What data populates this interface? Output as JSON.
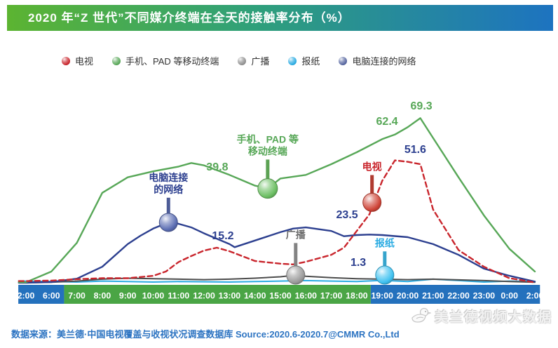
{
  "header": {
    "title": "2020 年“Z 世代”不同媒介终端在全天的接触率分布（%）"
  },
  "legend": {
    "items": [
      {
        "id": "tv",
        "label": "电视",
        "color": "#c9252c"
      },
      {
        "id": "mobile",
        "label": "手机、PAD 等移动终端",
        "color": "#57a757"
      },
      {
        "id": "radio",
        "label": "广播",
        "color": "#8f8f8f"
      },
      {
        "id": "newspaper",
        "label": "报纸",
        "color": "#29abe2"
      },
      {
        "id": "pc-network",
        "label": "电脑连接的网络",
        "color": "#55659f"
      }
    ]
  },
  "chart_data": {
    "type": "line",
    "title": "2020 年“Z 世代”不同媒介终端在全天的接触率分布（%）",
    "x_ticks": [
      "2:00",
      "6:00",
      "7:00",
      "8:00",
      "9:00",
      "10:00",
      "11:00",
      "12:00",
      "13:00",
      "14:00",
      "15:00",
      "16:00",
      "17:00",
      "18:00",
      "19:00",
      "20:00",
      "21:00",
      "22:00",
      "23:00",
      "0:00",
      "2:00"
    ],
    "ylim": [
      0,
      78
    ],
    "grid": false,
    "legend_position": "top",
    "axis_segments": [
      {
        "from": -0.3,
        "to": 1.5,
        "color": "#2471bd"
      },
      {
        "from": 1.5,
        "to": 13.55,
        "color": "#4aa545"
      },
      {
        "from": 13.55,
        "to": 20.2,
        "color": "#2471bd"
      }
    ],
    "series": [
      {
        "id": "newspaper",
        "name": "报纸",
        "color": "#29abe2",
        "dash": false,
        "width": 2,
        "points": [
          [
            0,
            1
          ],
          [
            1,
            0.8
          ],
          [
            2,
            0.6
          ],
          [
            3,
            1
          ],
          [
            4,
            0.8
          ],
          [
            5,
            0.6
          ],
          [
            6,
            0.8
          ],
          [
            7,
            0.7
          ],
          [
            8,
            0.6
          ],
          [
            9,
            0.8
          ],
          [
            10,
            1
          ],
          [
            11,
            1.2
          ],
          [
            12,
            1
          ],
          [
            13,
            0.8
          ],
          [
            14,
            1.3
          ],
          [
            15,
            0.8
          ],
          [
            16,
            1.8
          ],
          [
            17,
            1.2
          ],
          [
            18,
            0.6
          ],
          [
            19,
            1
          ],
          [
            20,
            0.8
          ]
        ]
      },
      {
        "id": "radio",
        "name": "广播",
        "color": "#4c4c4c",
        "dash": false,
        "width": 2,
        "points": [
          [
            0,
            0.3
          ],
          [
            1,
            0.5
          ],
          [
            2,
            1
          ],
          [
            3,
            1.8
          ],
          [
            4,
            2.2
          ],
          [
            5,
            2
          ],
          [
            6,
            1.8
          ],
          [
            7,
            1.6
          ],
          [
            8,
            1.8
          ],
          [
            9,
            2.2
          ],
          [
            10,
            2.8
          ],
          [
            10.6,
            3.5
          ],
          [
            11,
            3
          ],
          [
            12,
            2.4
          ],
          [
            13,
            2
          ],
          [
            14,
            1.8
          ],
          [
            15,
            1.6
          ],
          [
            16,
            1.8
          ],
          [
            17,
            1.5
          ],
          [
            18,
            1.2
          ],
          [
            19,
            0.8
          ],
          [
            20,
            0.5
          ]
        ]
      },
      {
        "id": "pc-network",
        "name": "电脑连接的网络",
        "color": "#2c3f8f",
        "dash": false,
        "width": 2.4,
        "points": [
          [
            0,
            0.3
          ],
          [
            1,
            0.6
          ],
          [
            2,
            2
          ],
          [
            3,
            7
          ],
          [
            4,
            16.5
          ],
          [
            4.5,
            20
          ],
          [
            5,
            23
          ],
          [
            5.6,
            25.6
          ],
          [
            6,
            25
          ],
          [
            6.5,
            23.5
          ],
          [
            7,
            21
          ],
          [
            8,
            16.5
          ],
          [
            8.2,
            15.2
          ],
          [
            9,
            18
          ],
          [
            10,
            21.5
          ],
          [
            10.5,
            23
          ],
          [
            11,
            23.5
          ],
          [
            12,
            22
          ],
          [
            12.5,
            19.8
          ],
          [
            13,
            20.3
          ],
          [
            13.5,
            20.5
          ],
          [
            14,
            20.3
          ],
          [
            15,
            19.4
          ],
          [
            16,
            16.5
          ],
          [
            17,
            12
          ],
          [
            18,
            6.2
          ],
          [
            19,
            3.2
          ],
          [
            20,
            0.8
          ]
        ]
      },
      {
        "id": "mobile",
        "name": "手机、PAD 等移动终端",
        "color": "#57a757",
        "dash": false,
        "width": 2.4,
        "points": [
          [
            0,
            0.5
          ],
          [
            1,
            5
          ],
          [
            2,
            17
          ],
          [
            3,
            38
          ],
          [
            4,
            44.5
          ],
          [
            5,
            47
          ],
          [
            6,
            49
          ],
          [
            6.5,
            50.5
          ],
          [
            7,
            49.5
          ],
          [
            8,
            45.5
          ],
          [
            9,
            41
          ],
          [
            9.5,
            39.8
          ],
          [
            10,
            44
          ],
          [
            11,
            45.5
          ],
          [
            12,
            50
          ],
          [
            13,
            55
          ],
          [
            14,
            60.5
          ],
          [
            14.5,
            62.4
          ],
          [
            15,
            65.5
          ],
          [
            15.5,
            69.3
          ],
          [
            16,
            61
          ],
          [
            17,
            44.5
          ],
          [
            18,
            28.5
          ],
          [
            19,
            14.5
          ],
          [
            20,
            5
          ]
        ]
      },
      {
        "id": "tv",
        "name": "电视",
        "color": "#c9252c",
        "dash": true,
        "width": 2.4,
        "points": [
          [
            0,
            1
          ],
          [
            1,
            1.2
          ],
          [
            2,
            1.8
          ],
          [
            3,
            2.2
          ],
          [
            4,
            2.2
          ],
          [
            5,
            3.2
          ],
          [
            5.5,
            5
          ],
          [
            6,
            9
          ],
          [
            6.5,
            11.5
          ],
          [
            7,
            13.8
          ],
          [
            7.5,
            15
          ],
          [
            8,
            13.5
          ],
          [
            9,
            9.4
          ],
          [
            10,
            8.3
          ],
          [
            10.5,
            8
          ],
          [
            11,
            9.1
          ],
          [
            12,
            12
          ],
          [
            12.5,
            15
          ],
          [
            13,
            22
          ],
          [
            13.5,
            29
          ],
          [
            14,
            43
          ],
          [
            14.5,
            51.6
          ],
          [
            15,
            51
          ],
          [
            15.5,
            50
          ],
          [
            16,
            31
          ],
          [
            17,
            14
          ],
          [
            18,
            7
          ],
          [
            19,
            2.2
          ],
          [
            20,
            0.4
          ]
        ]
      }
    ],
    "annotations": [
      {
        "text": "39.8",
        "x": 7.52,
        "v": 47.4,
        "color": "#57a757"
      },
      {
        "text": "62.4",
        "x": 14.19,
        "v": 66.5,
        "color": "#57a757"
      },
      {
        "text": "69.3",
        "x": 15.54,
        "v": 73.0,
        "color": "#57a757"
      },
      {
        "text": "51.6",
        "x": 15.3,
        "v": 54.7,
        "color": "#2c3f8f"
      },
      {
        "text": "23.5",
        "x": 12.62,
        "v": 27.4,
        "color": "#2c3f8f"
      },
      {
        "text": "15.2",
        "x": 7.74,
        "v": 18.5,
        "color": "#2c3f8f"
      },
      {
        "text": "1.3",
        "x": 13.06,
        "v": 7.4,
        "color": "#2c3f8f"
      }
    ],
    "callouts": [
      {
        "id": "mobile",
        "label_lines": [
          "手机、PAD 等",
          "移动终端"
        ],
        "x": 9.5,
        "v": 39.8,
        "label_v": 59,
        "color": "#57a757",
        "dot": "#6cbf63",
        "r": 14
      },
      {
        "id": "pc-network",
        "label_lines": [
          "电脑连接",
          "的网络"
        ],
        "x": 5.6,
        "v": 25.6,
        "label_v": 43,
        "color": "#2c3f8f",
        "dot": "#5a6cb2",
        "r": 13
      },
      {
        "id": "tv",
        "label_lines": [
          "电视"
        ],
        "x": 13.6,
        "v": 34,
        "label_v": 47.5,
        "color": "#c9252c",
        "dot": "#cf4538",
        "r": 13
      },
      {
        "id": "radio",
        "label_lines": [
          "广播"
        ],
        "x": 10.6,
        "v": 3.5,
        "label_v": 19,
        "color": "#6b6b6b",
        "dot": "#9a9a9a",
        "r": 13
      },
      {
        "id": "newspaper",
        "label_lines": [
          "报纸"
        ],
        "x": 14.1,
        "v": 1.3,
        "label_v": 15.5,
        "color": "#29abe2",
        "dot": "#3fc1f0",
        "r": 13
      }
    ]
  },
  "footer": {
    "source": "数据来源：美兰德·中国电视覆盖与收视状况调查数据库 Source:2020.6-2020.7@CMMR Co.,Ltd",
    "logo_text": "美兰德视频大数据"
  }
}
